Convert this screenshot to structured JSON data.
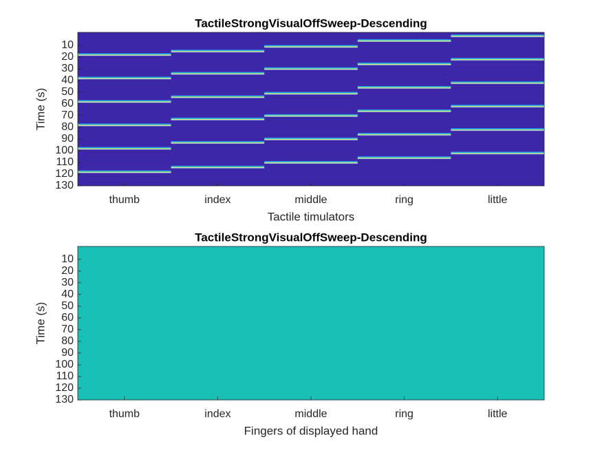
{
  "chart_data": [
    {
      "type": "stripes",
      "title": "TactileStrongVisualOffSweep-Descending",
      "xlabel": "Tactile timulators",
      "ylabel": "Time (s)",
      "categories": [
        "thumb",
        "index",
        "middle",
        "ring",
        "little"
      ],
      "events": [
        [
          18,
          38,
          58,
          78,
          98,
          118
        ],
        [
          15,
          34,
          54,
          73,
          93,
          114
        ],
        [
          11,
          30,
          51,
          70,
          90,
          110
        ],
        [
          6,
          26,
          46,
          66,
          86,
          106
        ],
        [
          2,
          22,
          42,
          62,
          82,
          102
        ]
      ],
      "background": "#3e26a8",
      "ylim": [
        -1,
        130
      ],
      "yticks": [
        10,
        20,
        30,
        40,
        50,
        60,
        70,
        80,
        90,
        100,
        110,
        120,
        130
      ],
      "y_reversed": true
    },
    {
      "type": "fill",
      "title": "TactileStrongVisualOffSweep-Descending",
      "xlabel": "Fingers of displayed hand",
      "ylabel": "Time (s)",
      "categories": [
        "thumb",
        "index",
        "middle",
        "ring",
        "little"
      ],
      "color": "#18bfb4",
      "ylim": [
        -1,
        130
      ],
      "yticks": [
        10,
        20,
        30,
        40,
        50,
        60,
        70,
        80,
        90,
        100,
        110,
        120,
        130
      ],
      "y_reversed": true
    }
  ]
}
